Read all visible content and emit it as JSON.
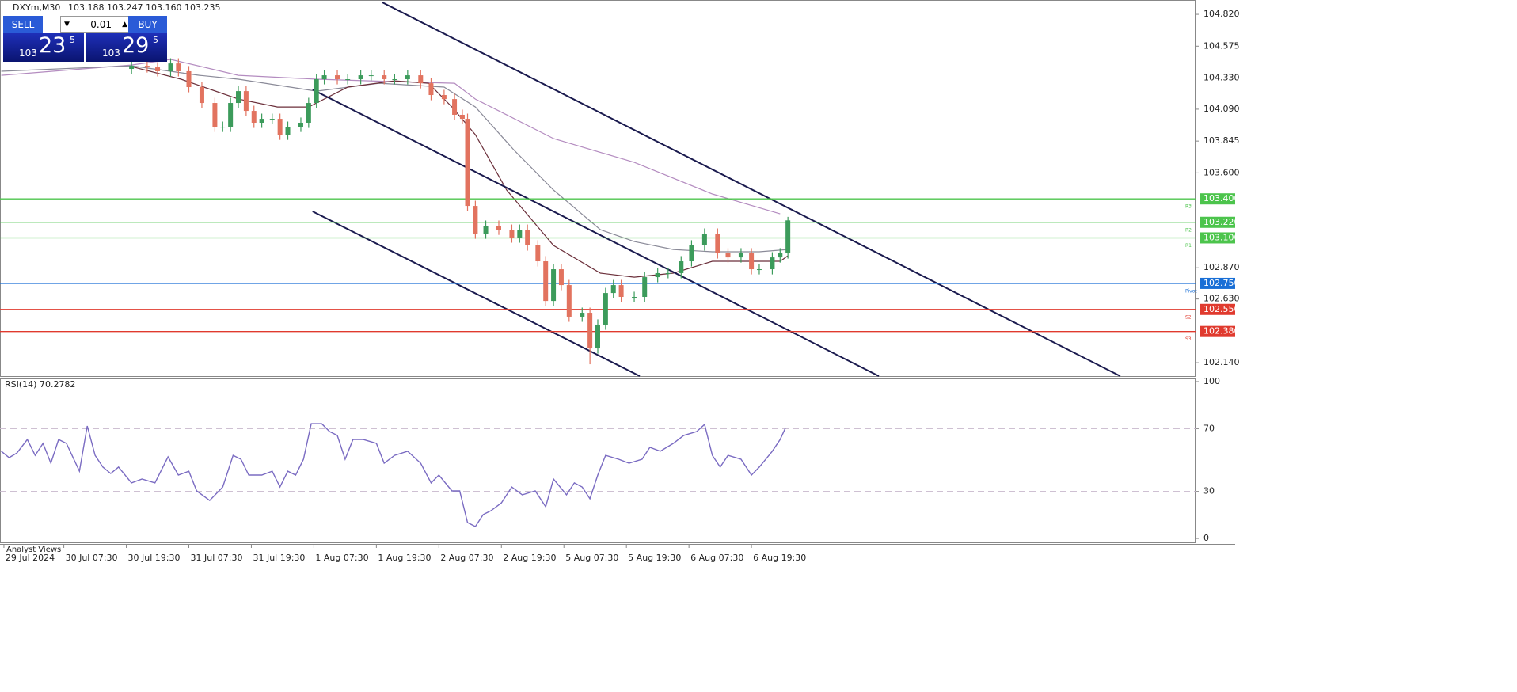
{
  "header": {
    "symbol": "DXYm,M30",
    "ohlc": "103.188 103.247 103.160 103.235"
  },
  "trade_panel": {
    "sell": "SELL",
    "buy": "BUY",
    "volume": "0.01",
    "sell_prefix": "103",
    "sell_big": "23",
    "sell_small": "5",
    "buy_prefix": "103",
    "buy_big": "29",
    "buy_small": "5"
  },
  "footer_tab": "Analyst Views",
  "chart_data": [
    {
      "type": "candlestick",
      "xlim": [
        -1.5,
        457.5
      ],
      "ylim": [
        102.037,
        104.93
      ],
      "xticks": [
        {
          "value": 0,
          "label": "29 Jul 2024"
        },
        {
          "value": 23,
          "label": "30 Jul 07:30"
        },
        {
          "value": 47,
          "label": "30 Jul 19:30"
        },
        {
          "value": 71,
          "label": "31 Jul 07:30"
        },
        {
          "value": 95,
          "label": "31 Jul 19:30"
        },
        {
          "value": 119,
          "label": "1 Aug 07:30"
        },
        {
          "value": 143,
          "label": "1 Aug 19:30"
        },
        {
          "value": 167,
          "label": "2 Aug 07:30"
        },
        {
          "value": 191,
          "label": "2 Aug 19:30"
        },
        {
          "value": 215,
          "label": "5 Aug 07:30"
        },
        {
          "value": 239,
          "label": "5 Aug 19:30"
        },
        {
          "value": 263,
          "label": "6 Aug 07:30"
        },
        {
          "value": 287,
          "label": "6 Aug 19:30"
        }
      ],
      "yticks": [
        {
          "value": 104.82,
          "label": "104.820"
        },
        {
          "value": 104.575,
          "label": "104.575"
        },
        {
          "value": 104.33,
          "label": "104.330"
        },
        {
          "value": 104.09,
          "label": "104.090"
        },
        {
          "value": 103.845,
          "label": "103.845"
        },
        {
          "value": 103.6,
          "label": "103.600"
        },
        {
          "value": 102.87,
          "label": "102.870"
        },
        {
          "value": 102.63,
          "label": "102.630"
        },
        {
          "value": 102.14,
          "label": "102.140"
        }
      ],
      "up_color": "#3c9b5b",
      "down_color": "#e2735f",
      "x": [
        49,
        55,
        59,
        64,
        67,
        71,
        76,
        81,
        84,
        87,
        90,
        93,
        96,
        99,
        103,
        106,
        109,
        114,
        117,
        120,
        123,
        128,
        132,
        137,
        141,
        146,
        150,
        155,
        160,
        164,
        169,
        173,
        176,
        178,
        181,
        185,
        190,
        195,
        198,
        201,
        205,
        208,
        211,
        214,
        217,
        222,
        225,
        228,
        231,
        234,
        237,
        242,
        246,
        251,
        255,
        260,
        264,
        269,
        274,
        278,
        283,
        287,
        290,
        295,
        298,
        301
      ],
      "open": [
        104.4,
        104.424,
        104.412,
        104.382,
        104.442,
        104.382,
        104.26,
        104.138,
        103.955,
        103.955,
        104.138,
        104.229,
        104.077,
        103.986,
        104.016,
        104.016,
        103.894,
        103.955,
        103.986,
        104.138,
        104.321,
        104.351,
        104.321,
        104.321,
        104.351,
        104.351,
        104.321,
        104.321,
        104.351,
        104.29,
        104.199,
        104.168,
        104.047,
        104.016,
        103.346,
        103.133,
        103.194,
        103.163,
        103.103,
        103.163,
        103.042,
        102.92,
        102.615,
        102.859,
        102.737,
        102.494,
        102.524,
        102.25,
        102.433,
        102.676,
        102.737,
        102.646,
        102.646,
        102.798,
        102.829,
        102.829,
        102.92,
        103.042,
        103.133,
        102.981,
        102.95,
        102.981,
        102.859,
        102.859,
        102.95,
        102.981
      ],
      "high": [
        104.464,
        104.464,
        104.452,
        104.482,
        104.482,
        104.422,
        104.3,
        104.178,
        103.995,
        104.178,
        104.269,
        104.269,
        104.117,
        104.056,
        104.056,
        104.056,
        103.995,
        104.026,
        104.178,
        104.361,
        104.391,
        104.391,
        104.361,
        104.391,
        104.391,
        104.391,
        104.361,
        104.391,
        104.391,
        104.33,
        104.239,
        104.208,
        104.087,
        104.056,
        103.386,
        103.234,
        103.234,
        103.203,
        103.203,
        103.203,
        103.082,
        102.96,
        102.899,
        102.899,
        102.777,
        102.564,
        102.564,
        102.473,
        102.716,
        102.777,
        102.777,
        102.686,
        102.838,
        102.869,
        102.869,
        102.96,
        103.082,
        103.173,
        103.173,
        103.021,
        103.021,
        103.021,
        102.899,
        102.99,
        103.021,
        103.262
      ],
      "low": [
        104.36,
        104.372,
        104.342,
        104.342,
        104.342,
        104.22,
        104.098,
        103.915,
        103.915,
        103.915,
        104.098,
        104.037,
        103.946,
        103.946,
        103.976,
        103.854,
        103.854,
        103.915,
        103.946,
        104.098,
        104.281,
        104.281,
        104.281,
        104.281,
        104.311,
        104.281,
        104.281,
        104.281,
        104.25,
        104.159,
        104.128,
        104.007,
        103.976,
        103.306,
        103.093,
        103.093,
        103.123,
        103.063,
        103.063,
        103.002,
        102.88,
        102.575,
        102.575,
        102.697,
        102.454,
        102.454,
        102.128,
        102.21,
        102.393,
        102.636,
        102.606,
        102.606,
        102.606,
        102.758,
        102.789,
        102.789,
        102.88,
        103.002,
        102.941,
        102.91,
        102.91,
        102.819,
        102.819,
        102.819,
        102.91,
        102.941
      ],
      "close": [
        104.424,
        104.412,
        104.382,
        104.442,
        104.382,
        104.26,
        104.138,
        103.955,
        103.955,
        104.138,
        104.229,
        104.077,
        103.986,
        104.016,
        104.016,
        103.894,
        103.955,
        103.986,
        104.138,
        104.321,
        104.351,
        104.321,
        104.321,
        104.351,
        104.351,
        104.321,
        104.321,
        104.351,
        104.29,
        104.199,
        104.168,
        104.047,
        104.016,
        103.346,
        103.133,
        103.194,
        103.163,
        103.103,
        103.163,
        103.042,
        102.92,
        102.615,
        102.859,
        102.737,
        102.494,
        102.524,
        102.25,
        102.433,
        102.676,
        102.737,
        102.646,
        102.646,
        102.798,
        102.829,
        102.829,
        102.92,
        103.042,
        103.133,
        102.981,
        102.95,
        102.981,
        102.859,
        102.859,
        102.95,
        102.981,
        103.235
      ],
      "lines": [
        {
          "color": "#b48cc0",
          "x": [
            -1,
            49,
            64,
            90,
            120,
            150,
            173,
            181,
            211,
            242,
            272,
            298
          ],
          "values": [
            104.351,
            104.43,
            104.473,
            104.351,
            104.321,
            104.302,
            104.29,
            104.168,
            103.864,
            103.681,
            103.438,
            103.285
          ]
        },
        {
          "color": "#8a8a98",
          "x": [
            -1,
            49,
            75,
            90,
            120,
            144,
            169,
            181,
            196,
            211,
            229,
            242,
            257,
            272,
            290,
            301
          ],
          "values": [
            104.382,
            104.424,
            104.351,
            104.321,
            104.229,
            104.29,
            104.26,
            104.107,
            103.772,
            103.468,
            103.163,
            103.072,
            103.011,
            102.993,
            102.993,
            103.011
          ]
        },
        {
          "color": "#6b2f3a",
          "x": [
            49,
            68,
            90,
            105,
            117,
            132,
            150,
            163,
            172,
            181,
            193,
            211,
            229,
            242,
            257,
            272,
            287,
            298,
            301
          ],
          "values": [
            104.418,
            104.321,
            104.168,
            104.107,
            104.107,
            104.26,
            104.308,
            104.29,
            104.107,
            103.894,
            103.468,
            103.042,
            102.829,
            102.798,
            102.829,
            102.92,
            102.92,
            102.92,
            102.963
          ]
        }
      ],
      "trendlines": [
        {
          "color": "#1a1a4e",
          "x": [
            145.3,
            428.6
          ],
          "values": [
            104.912,
            102.037
          ]
        },
        {
          "color": "#1a1a4e",
          "x": [
            118.5,
            335.9
          ],
          "values": [
            104.241,
            102.037
          ]
        },
        {
          "color": "#1a1a4e",
          "x": [
            118.5,
            244.1
          ],
          "values": [
            103.304,
            102.037
          ]
        }
      ],
      "levels": [
        {
          "value": 103.4,
          "label": "103.400",
          "name": "R3",
          "color": "#4cc44c"
        },
        {
          "value": 103.22,
          "label": "103.220",
          "name": "R2",
          "color": "#4cc44c"
        },
        {
          "value": 103.1,
          "label": "103.100",
          "name": "R1",
          "color": "#4cc44c"
        },
        {
          "value": 102.75,
          "label": "102.750",
          "name": "Pivot",
          "color": "#1a6fd6"
        },
        {
          "value": 102.55,
          "label": "102.550",
          "name": "S2",
          "color": "#e03a2e"
        },
        {
          "value": 102.38,
          "label": "102.380",
          "name": "S3",
          "color": "#e03a2e"
        }
      ]
    },
    {
      "type": "line",
      "title": "RSI(14) 70.2782",
      "xlim": [
        -1.5,
        457.5
      ],
      "ylim": [
        -3,
        102
      ],
      "yticks": [
        100,
        70,
        30,
        0
      ],
      "levels": [
        70,
        30
      ],
      "color": "#7a6bc2",
      "x": [
        -1,
        2,
        5,
        9,
        12,
        15,
        18,
        21,
        24,
        29,
        32,
        35,
        38,
        41,
        44,
        49,
        53,
        58,
        63,
        67,
        71,
        74,
        79,
        84,
        88,
        91,
        94,
        99,
        103,
        106,
        109,
        112,
        115,
        118,
        122,
        125,
        128,
        131,
        134,
        138,
        143,
        146,
        150,
        155,
        160,
        164,
        167,
        172,
        175,
        178,
        181,
        184,
        187,
        191,
        195,
        199,
        204,
        208,
        211,
        216,
        219,
        222,
        225,
        228,
        231,
        236,
        240,
        245,
        248,
        252,
        257,
        261,
        266,
        269,
        272,
        275,
        278,
        283,
        287,
        290,
        295,
        298,
        300
      ],
      "values": [
        55.6,
        51.5,
        54.5,
        63.1,
        53.0,
        60.6,
        48.0,
        63.1,
        60.6,
        42.9,
        71.7,
        53.0,
        45.5,
        41.4,
        45.5,
        35.4,
        37.9,
        35.4,
        52.0,
        40.4,
        42.9,
        30.3,
        24.2,
        32.8,
        53.0,
        50.5,
        40.4,
        40.4,
        42.9,
        32.8,
        42.9,
        40.4,
        50.5,
        73.2,
        73.2,
        68.2,
        65.7,
        50.5,
        63.1,
        63.1,
        60.6,
        48.0,
        53.0,
        55.6,
        48.0,
        35.4,
        40.4,
        30.3,
        30.3,
        10.1,
        7.6,
        15.2,
        17.7,
        22.7,
        32.8,
        27.8,
        30.3,
        20.2,
        37.9,
        27.8,
        35.4,
        32.8,
        25.3,
        40.4,
        53.0,
        50.5,
        48.0,
        50.5,
        58.1,
        55.6,
        60.6,
        65.7,
        68.2,
        72.7,
        53.0,
        45.5,
        53.0,
        50.5,
        40.4,
        45.5,
        55.6,
        63.1,
        70.3
      ]
    }
  ]
}
